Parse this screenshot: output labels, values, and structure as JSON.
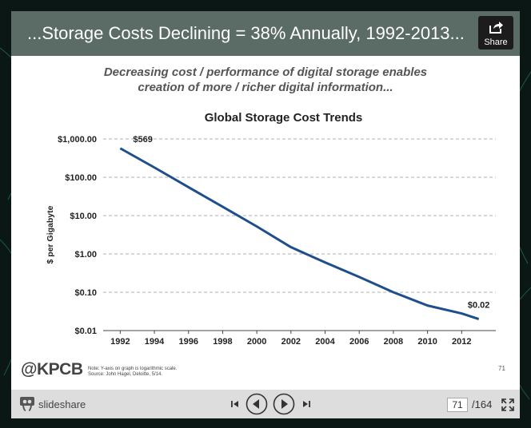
{
  "slide": {
    "title": "...Storage Costs Declining = 38% Annually, 1992-2013...",
    "subtitle_line1": "Decreasing cost / performance of digital storage enables",
    "subtitle_line2": "creation of more / richer digital information...",
    "logo": "@KPCB",
    "footnote_line1": "Note: Y-axis on graph is logarithmic scale.",
    "footnote_line2": "Source: John Hagel, Deloitte, 5/14.",
    "slide_number": "71"
  },
  "share": {
    "label": "Share"
  },
  "player": {
    "brand": "slideshare",
    "current_page": "71",
    "total_pages": "/164"
  },
  "colors": {
    "title_bar": "#5b6b66",
    "line": "#1f4e8c",
    "toolbar": "#dddddd"
  },
  "icons": [
    "share-icon",
    "slideshare-logo-icon",
    "first-slide-icon",
    "previous-icon",
    "next-icon",
    "last-slide-icon",
    "fullscreen-icon"
  ],
  "chart_data": {
    "type": "line",
    "title": "Global Storage Cost Trends",
    "ylabel": "$ per Gigabyte",
    "xlabel": "",
    "y_scale": "log",
    "ylim": [
      0.01,
      1000
    ],
    "xlim": [
      1991,
      2014
    ],
    "grid": "horizontal dashed",
    "x_ticks": [
      "1992",
      "1994",
      "1996",
      "1998",
      "2000",
      "2002",
      "2004",
      "2006",
      "2008",
      "2010",
      "2012"
    ],
    "y_ticks": [
      {
        "value": 1000,
        "label": "$1,000.00"
      },
      {
        "value": 100,
        "label": "$100.00"
      },
      {
        "value": 10,
        "label": "$10.00"
      },
      {
        "value": 1,
        "label": "$1.00"
      },
      {
        "value": 0.1,
        "label": "$0.10"
      },
      {
        "value": 0.01,
        "label": "$0.01"
      }
    ],
    "series": [
      {
        "x": [
          1992,
          1994,
          1996,
          1998,
          2000,
          2002,
          2004,
          2006,
          2008,
          2010,
          2012,
          2013
        ],
        "y": [
          569,
          180,
          55,
          17,
          5.2,
          1.5,
          0.6,
          0.25,
          0.1,
          0.045,
          0.028,
          0.02
        ]
      }
    ],
    "annotations": [
      {
        "x": 1992,
        "y": 569,
        "text": "$569"
      },
      {
        "x": 2013,
        "y": 0.02,
        "text": "$0.02"
      }
    ]
  }
}
